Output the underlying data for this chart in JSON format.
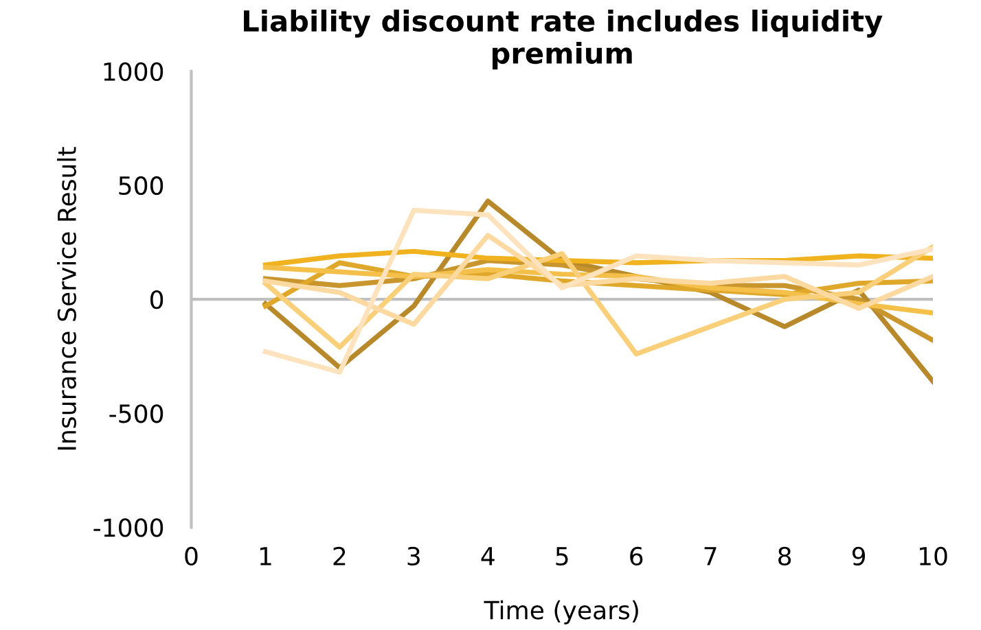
{
  "chart_data": {
    "type": "line",
    "title": "Liability discount rate includes liquidity\npremium",
    "xlabel": "Time (years)",
    "ylabel": "Insurance Service Result",
    "x": [
      1,
      2,
      3,
      4,
      5,
      6,
      7,
      8,
      9,
      10
    ],
    "series": [
      {
        "color": "#b8892a",
        "values": [
          -20,
          -300,
          -30,
          430,
          170,
          100,
          30,
          -120,
          40,
          -360
        ]
      },
      {
        "color": "#c9962e",
        "values": [
          90,
          60,
          90,
          170,
          150,
          90,
          60,
          60,
          0,
          -180
        ]
      },
      {
        "color": "#e0a82a",
        "values": [
          -30,
          160,
          100,
          110,
          80,
          60,
          40,
          20,
          70,
          80
        ]
      },
      {
        "color": "#f0b21e",
        "values": [
          150,
          190,
          210,
          180,
          170,
          160,
          170,
          170,
          190,
          180
        ]
      },
      {
        "color": "#f5c04a",
        "values": [
          140,
          120,
          100,
          130,
          110,
          100,
          50,
          30,
          -20,
          -60
        ]
      },
      {
        "color": "#f9cf7a",
        "values": [
          70,
          -210,
          110,
          90,
          200,
          -240,
          -120,
          0,
          30,
          230
        ]
      },
      {
        "color": "#fcd9a0",
        "values": [
          80,
          30,
          -110,
          280,
          60,
          90,
          70,
          100,
          -40,
          100
        ]
      },
      {
        "color": "#fde3bd",
        "values": [
          -230,
          -320,
          390,
          370,
          50,
          190,
          170,
          160,
          150,
          220
        ]
      }
    ],
    "xlim": [
      0,
      10
    ],
    "xticks": [
      0,
      1,
      2,
      3,
      4,
      5,
      6,
      7,
      8,
      9,
      10
    ],
    "ylim": [
      -1000,
      1000
    ],
    "yticks": [
      -1000,
      -500,
      0,
      500,
      1000
    ],
    "ref_lines": [
      {
        "axis": "y",
        "value": 0,
        "color": "#bfbfbf"
      }
    ],
    "marker": "none",
    "line_style": "solid"
  }
}
